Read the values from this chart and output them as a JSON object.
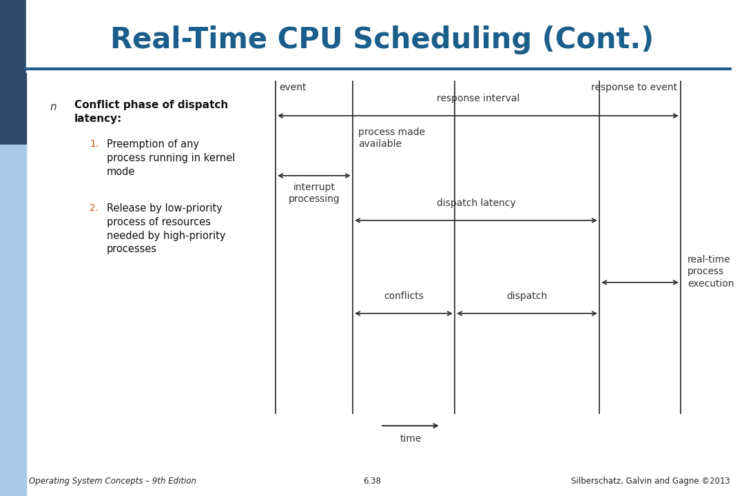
{
  "title": "Real-Time CPU Scheduling (Cont.)",
  "title_color": "#1B5E8B",
  "background_color": "#FFFFFF",
  "sidebar_dark": "#2E4A6B",
  "sidebar_light": "#A8C8E8",
  "header_line_color": "#1B5E8B",
  "bullet_main": "Conflict phase of dispatch\nlatency:",
  "bullet_n_symbol": "n",
  "bullet1": "Preemption of any\nprocess running in kernel\nmode",
  "bullet2": "Release by low-priority\nprocess of resources\nneeded by high-priority\nprocesses",
  "diagram": {
    "event_label": "event",
    "response_to_event_label": "response to event",
    "response_interval_label": "response interval",
    "interrupt_processing_label": "interrupt\nprocessing",
    "process_made_available_label": "process made\navailable",
    "dispatch_latency_label": "dispatch latency",
    "real_time_label": "real-time\nprocess\nexecution",
    "conflicts_label": "conflicts",
    "dispatch_label": "dispatch",
    "time_label": "time"
  },
  "footer_left": "Operating System Concepts – 9th Edition",
  "footer_center": "6.38",
  "footer_right": "Silberschatz, Galvin and Gagne ©2013"
}
